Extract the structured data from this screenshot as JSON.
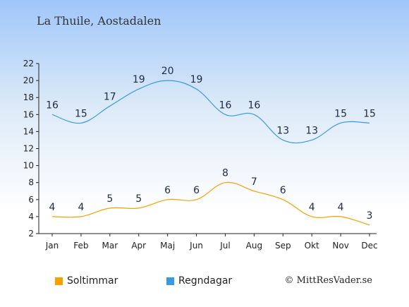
{
  "title": "La Thuile, Aostadalen",
  "credit": "© MittResVader.se",
  "colors": {
    "soltimmar": "#f5a100",
    "regndagar": "#3a9ae0",
    "axis": "#222222",
    "text": "#222222"
  },
  "chart_data": {
    "type": "line",
    "title": "La Thuile, Aostadalen",
    "categories": [
      "Jan",
      "Feb",
      "Mar",
      "Apr",
      "Maj",
      "Jun",
      "Jul",
      "Aug",
      "Sep",
      "Okt",
      "Nov",
      "Dec"
    ],
    "ylim": [
      2,
      22
    ],
    "yticks": [
      2,
      4,
      6,
      8,
      10,
      12,
      14,
      16,
      18,
      20,
      22
    ],
    "grid": false,
    "legend_position": "bottom-left",
    "series": [
      {
        "name": "Soltimmar",
        "color": "#f5a100",
        "values": [
          4,
          4,
          5,
          5,
          6,
          6,
          8,
          7,
          6,
          4,
          4,
          3
        ]
      },
      {
        "name": "Regndagar",
        "color": "#3a9ae0",
        "values": [
          16,
          15,
          17,
          19,
          20,
          19,
          16,
          16,
          13,
          13,
          15,
          15
        ]
      }
    ]
  }
}
